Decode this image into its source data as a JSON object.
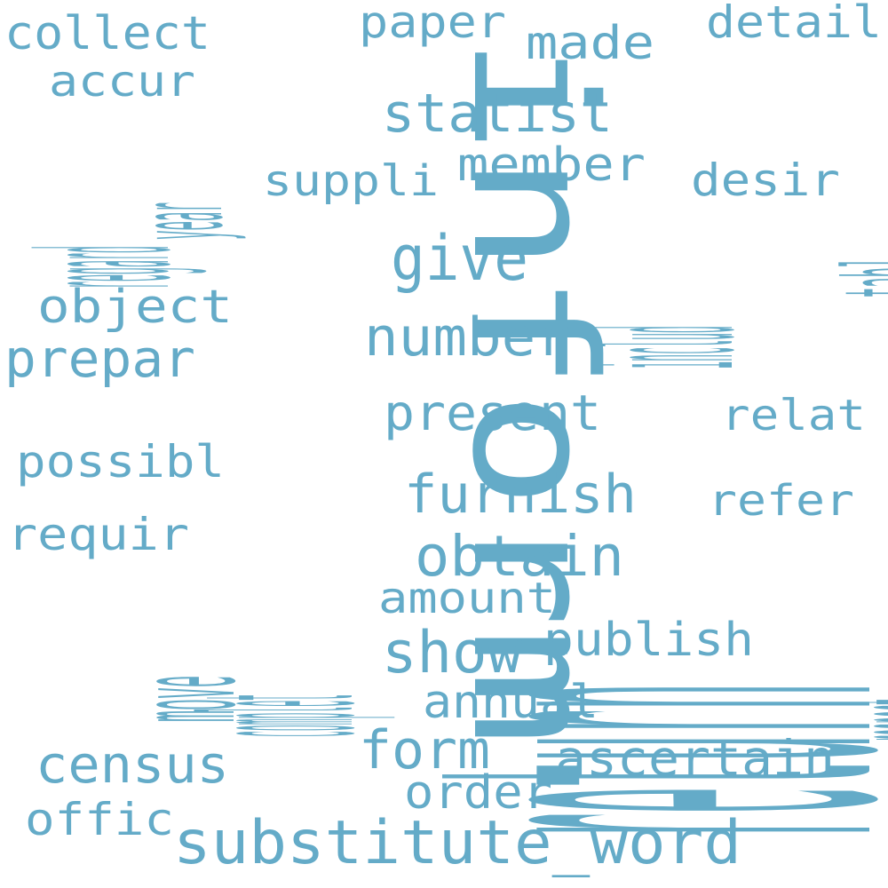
{
  "word_color": "#64abc8",
  "background_color": "#ffffff",
  "words": {
    "return": "return",
    "inform": "inform",
    "substitute_word": "substitute_word",
    "collect": "collect",
    "paper": "paper",
    "made": "made",
    "detail": "detail",
    "accur": "accur",
    "statist": "statist",
    "regard": "regard",
    "year": "year",
    "suppli": "suppli",
    "member": "member",
    "desir": "desir",
    "tabl": "tabl",
    "give": "give",
    "includ": "includ",
    "object": "object",
    "prepar": "prepar",
    "number": "number",
    "present": "present",
    "relat": "relat",
    "possibl": "possibl",
    "furnish": "furnish",
    "refer": "refer",
    "requir": "requir",
    "obtain": "obtain",
    "respect": "respect",
    "complet": "complet",
    "move": "move",
    "amount": "amount",
    "publish": "publish",
    "show": "show",
    "annual": "annual",
    "census": "census",
    "form": "form",
    "ascertain": "ascertain",
    "order": "order",
    "offic": "offic"
  }
}
